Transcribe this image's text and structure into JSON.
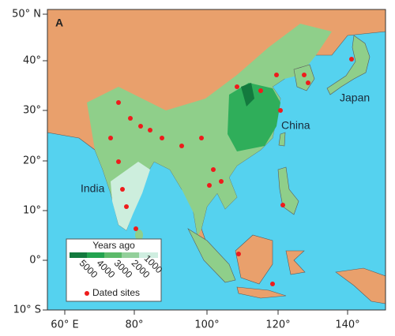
{
  "panel_label": "A",
  "axes": {
    "y_labels": [
      "50° N",
      "40°",
      "30°",
      "20°",
      "10°",
      "0°",
      "10° S"
    ],
    "x_labels": [
      "60° E",
      "80°",
      "100°",
      "120°",
      "140°"
    ]
  },
  "regions": [
    "India",
    "China",
    "Japan"
  ],
  "legend": {
    "title": "Years ago",
    "scale": [
      "5000",
      "4000",
      "3000",
      "2000",
      "1000"
    ],
    "sites": "Dated sites"
  }
}
